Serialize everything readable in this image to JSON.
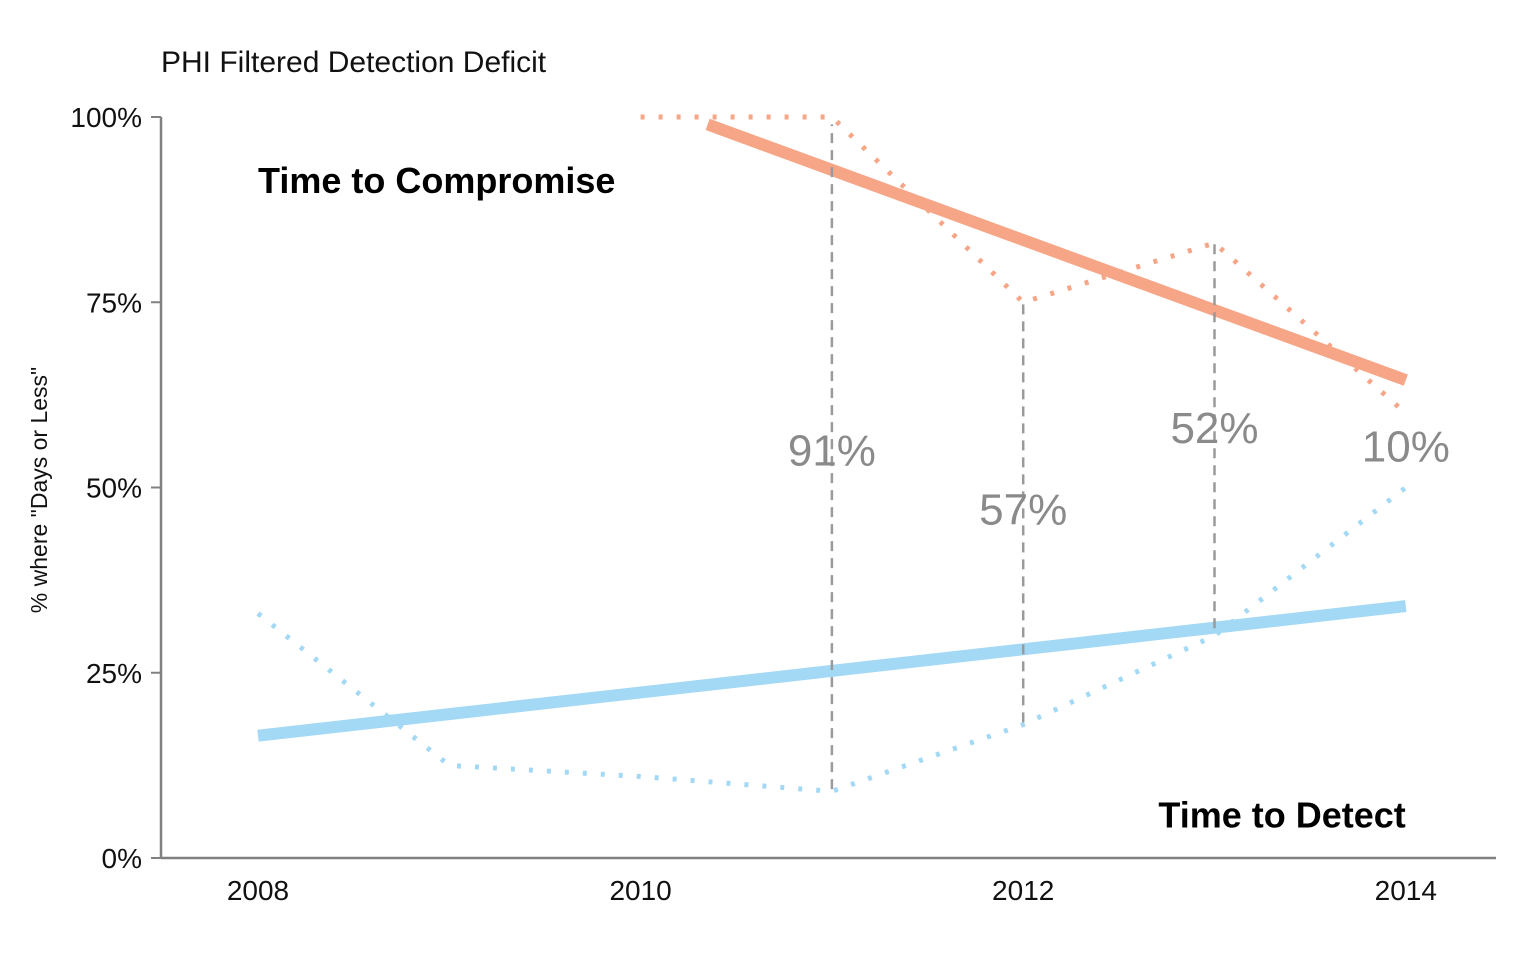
{
  "chart_data": {
    "type": "line",
    "title": "PHI Filtered Detection Deficit",
    "ylabel": "% where \"Days or Less\"",
    "xlabel": "",
    "x_ticks": [
      "2008",
      "2010",
      "2012",
      "2014"
    ],
    "y_ticks": [
      "0%",
      "25%",
      "50%",
      "75%",
      "100%"
    ],
    "xlim": [
      2007.5,
      2014.5
    ],
    "ylim": [
      0,
      100
    ],
    "grid": false,
    "colors": {
      "compromise": "#f7a587",
      "detect": "#a3d9f5",
      "gap_line": "#9a9a9a",
      "axis": "#808080"
    },
    "series": [
      {
        "name": "Time to Compromise",
        "style": "dotted",
        "color": "#f7a587",
        "x": [
          2010,
          2011,
          2012,
          2013,
          2014
        ],
        "y": [
          100,
          100,
          75,
          83,
          60
        ]
      },
      {
        "name": "Time to Compromise",
        "style": "trend",
        "color": "#f7a587",
        "x": [
          2010.35,
          2014
        ],
        "y": [
          99,
          64.5
        ]
      },
      {
        "name": "Time to Detect",
        "style": "dotted",
        "color": "#a3d9f5",
        "x": [
          2008,
          2009,
          2010,
          2011,
          2012,
          2013,
          2014
        ],
        "y": [
          33,
          12.5,
          11,
          9,
          18,
          30,
          50
        ]
      },
      {
        "name": "Time to Detect",
        "style": "trend",
        "color": "#a3d9f5",
        "x": [
          2008,
          2014
        ],
        "y": [
          16.5,
          34
        ]
      }
    ],
    "series_labels": [
      {
        "text": "Time to Compromise",
        "x": 2008,
        "y": 90
      },
      {
        "text": "Time to Detect",
        "x": 2014,
        "y": 4.5
      }
    ],
    "gap_lines": [
      {
        "x": 2011,
        "y1": 9.3,
        "y2": 99
      },
      {
        "x": 2012,
        "y1": 18.3,
        "y2": 75.5
      },
      {
        "x": 2013,
        "y1": 31,
        "y2": 83
      }
    ],
    "gap_labels": [
      {
        "text": "91%",
        "x": 2011,
        "y": 53
      },
      {
        "text": "57%",
        "x": 2012,
        "y": 45
      },
      {
        "text": "52%",
        "x": 2013,
        "y": 56
      },
      {
        "text": "10%",
        "x": 2014,
        "y": 53.5
      }
    ]
  }
}
